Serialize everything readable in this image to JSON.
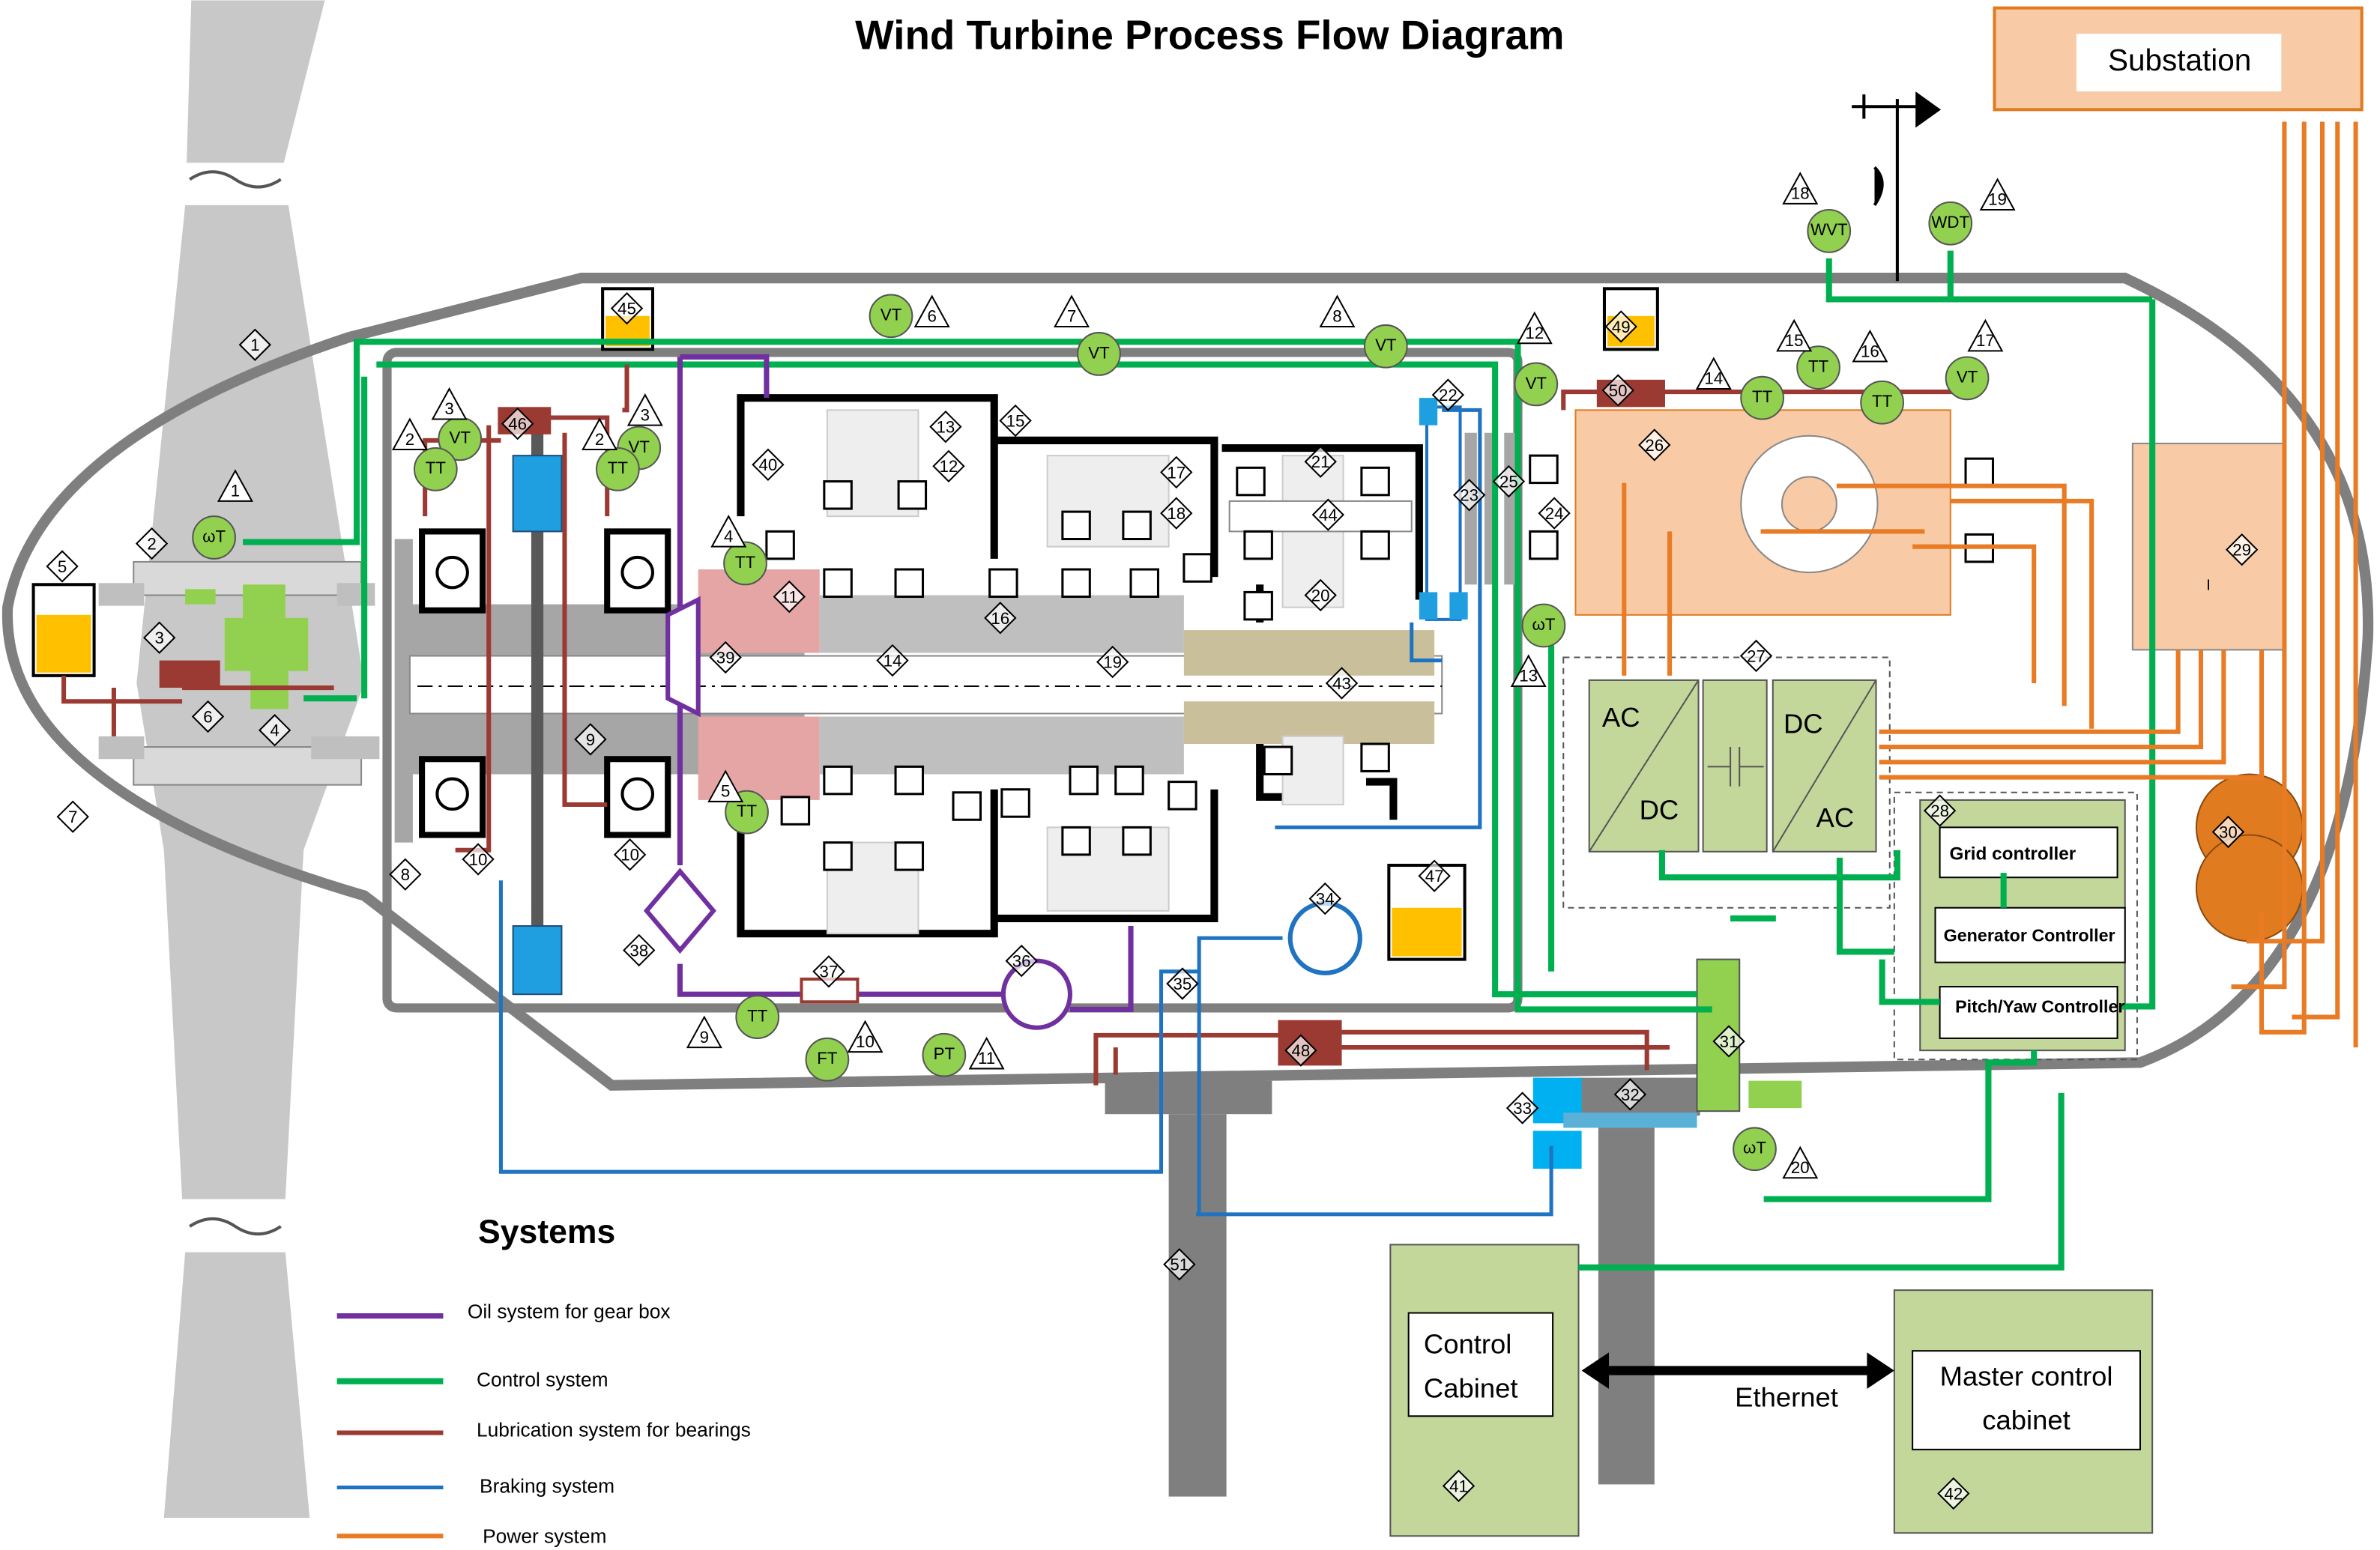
{
  "title": "Wind Turbine Process Flow Diagram",
  "blocks": {
    "substation": "Substation",
    "control_cabinet": [
      "Control",
      "Cabinet"
    ],
    "master_control_cabinet": [
      "Master control",
      "cabinet"
    ],
    "ethernet": "Ethernet",
    "grid_controller": "Grid controller",
    "generator_controller": "Generator Controller",
    "pitch_yaw_controller": "Pitch/Yaw Controller",
    "converter": [
      "AC",
      "DC",
      "DC",
      "AC"
    ]
  },
  "legend": {
    "title": "Systems",
    "items": [
      "Oil system for gear box",
      "Control system",
      "Lubrication system for bearings",
      "Braking system",
      "Power system"
    ]
  },
  "instruments": [
    "ωT",
    "VT",
    "TT",
    "VT",
    "TT",
    "TT",
    "TT",
    "VT",
    "VT",
    "VT",
    "VT",
    "TT",
    "TT",
    "TT",
    "VT",
    "WVT",
    "WDT",
    "ωT",
    "TT",
    "FT",
    "PT",
    "ωT"
  ],
  "triangle_markers": [
    "1",
    "2",
    "3",
    "2",
    "3",
    "4",
    "5",
    "6",
    "7",
    "8",
    "12",
    "14",
    "15",
    "16",
    "17",
    "18",
    "19",
    "20",
    "9",
    "10",
    "11",
    "13"
  ],
  "diamond_markers": [
    "1",
    "2",
    "3",
    "4",
    "5",
    "6",
    "7",
    "8",
    "9",
    "10",
    "10",
    "11",
    "12",
    "13",
    "14",
    "15",
    "16",
    "17",
    "18",
    "19",
    "20",
    "21",
    "22",
    "23",
    "24",
    "25",
    "26",
    "27",
    "28",
    "29",
    "30",
    "31",
    "32",
    "33",
    "34",
    "35",
    "36",
    "37",
    "38",
    "39",
    "40",
    "41",
    "42",
    "43",
    "44",
    "45",
    "46",
    "47",
    "48",
    "49",
    "50",
    "51"
  ],
  "panel_symbol": "I"
}
